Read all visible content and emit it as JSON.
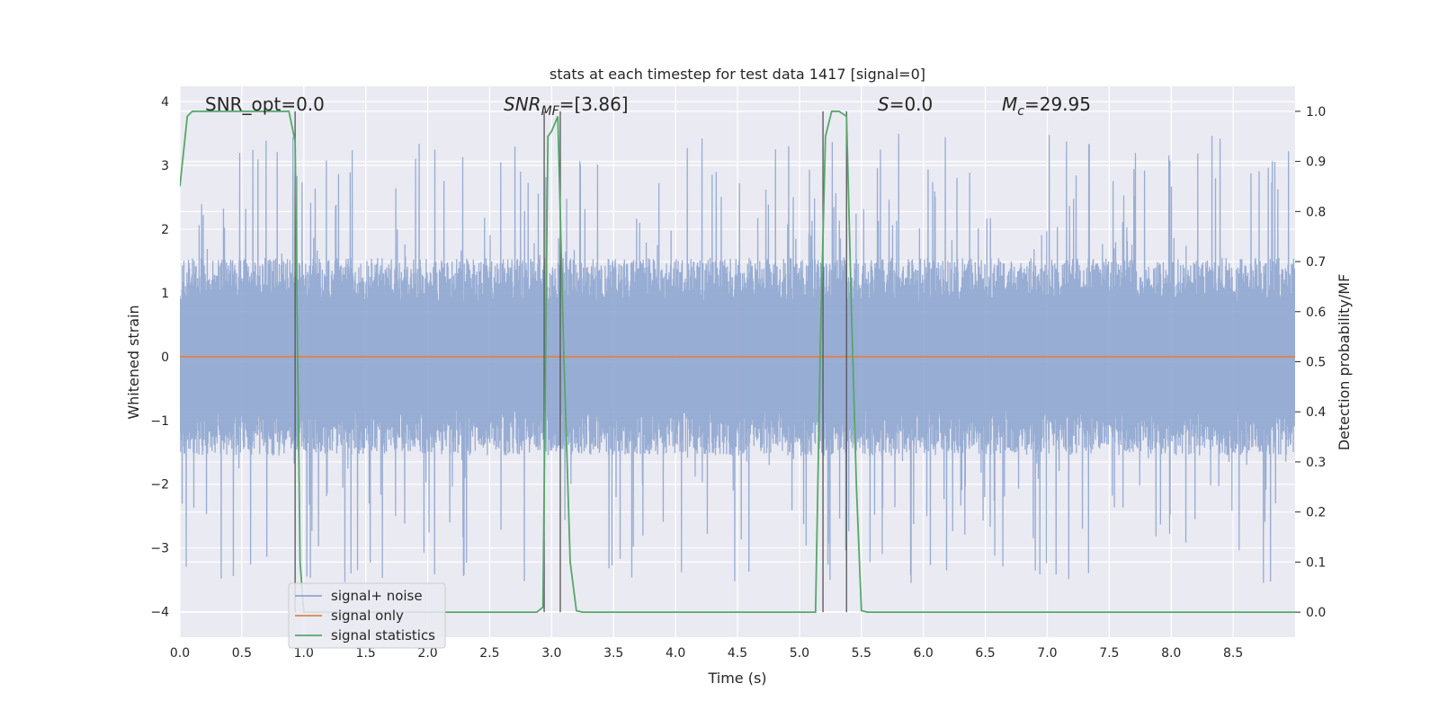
{
  "chart_data": {
    "type": "line",
    "title": "stats at each timestep for test data 1417 [signal=0]",
    "xlabel": "Time (s)",
    "ylabel": "Whitened strain",
    "ylabel_right": "Detection probability/MF",
    "xlim": [
      0.0,
      9.0
    ],
    "ylim": [
      -4.4,
      4.24
    ],
    "ylim_right": [
      -0.05,
      1.05
    ],
    "x_ticks": [
      "0.0",
      "0.5",
      "1.0",
      "1.5",
      "2.0",
      "2.5",
      "3.0",
      "3.5",
      "4.0",
      "4.5",
      "5.0",
      "5.5",
      "6.0",
      "6.5",
      "7.0",
      "7.5",
      "8.0",
      "8.5"
    ],
    "y_ticks": [
      "4",
      "3",
      "2",
      "1",
      "0",
      "−1",
      "−2",
      "−3",
      "−4"
    ],
    "y_right_ticks": [
      "1.0",
      "0.9",
      "0.8",
      "0.7",
      "0.6",
      "0.5",
      "0.4",
      "0.3",
      "0.2",
      "0.1",
      "0.0"
    ],
    "grid": true,
    "legend_position": "lower-left",
    "annotations": {
      "snr_opt": "SNR_opt=0.0",
      "snr_mf_base": "SNR",
      "snr_mf_sub": "MF",
      "snr_mf_value": "=[3.86]",
      "s_base": "S",
      "s_value": "=0.0",
      "mc_base": "M",
      "mc_sub": "c",
      "mc_value": "=29.95"
    },
    "series": [
      {
        "name": "signal+ noise",
        "axis": "left",
        "color": "#8fa6cf",
        "noise_amplitude_typical": 1.55,
        "noise_amplitude_peak": 3.55,
        "duration": 9.0
      },
      {
        "name": "signal only",
        "axis": "left",
        "color": "#dd8452",
        "x": [
          0.0,
          9.0
        ],
        "y": [
          0.0,
          0.0
        ]
      },
      {
        "name": "signal statistics",
        "axis": "right",
        "color": "#55a868",
        "x": [
          0.0,
          0.06,
          0.1,
          0.2,
          0.3,
          0.5,
          0.7,
          0.85,
          0.88,
          0.93,
          0.97,
          1.0,
          1.5,
          2.0,
          2.5,
          2.88,
          2.93,
          2.97,
          3.0,
          3.05,
          3.1,
          3.15,
          3.2,
          3.25,
          4.0,
          5.0,
          5.13,
          5.17,
          5.21,
          5.26,
          5.32,
          5.38,
          5.42,
          5.46,
          5.5,
          5.55,
          6.0,
          7.0,
          8.0,
          9.0
        ],
        "y": [
          0.85,
          0.99,
          1.0,
          1.0,
          1.0,
          1.0,
          1.0,
          1.0,
          1.0,
          0.94,
          0.1,
          0.0,
          0.0,
          0.0,
          0.0,
          0.0,
          0.01,
          0.95,
          0.96,
          0.99,
          0.5,
          0.1,
          0.003,
          0.0,
          0.0,
          0.0,
          0.0,
          0.55,
          0.95,
          1.0,
          1.0,
          0.99,
          0.6,
          0.25,
          0.003,
          0.0,
          0.0,
          0.0,
          0.0,
          0.0
        ]
      }
    ],
    "vertical_markers": [
      0.93,
      2.94,
      3.07,
      5.19,
      5.38
    ]
  }
}
